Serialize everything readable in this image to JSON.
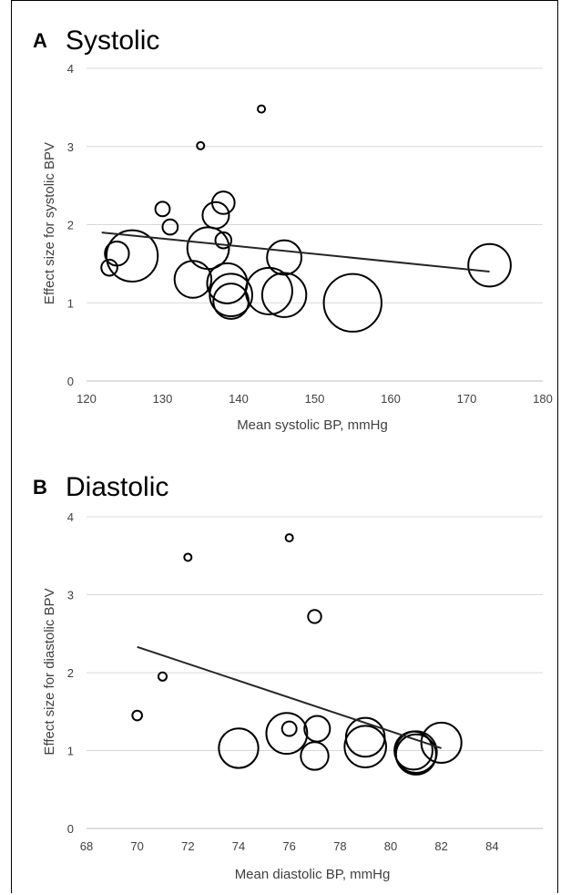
{
  "colors": {
    "bubble_stroke": "#000000",
    "trend_line": "#262626",
    "gridline": "#d9d9d9",
    "axis_text": "#404040"
  },
  "chart_data": [
    {
      "type": "scatter",
      "panel_letter": "A",
      "title": "Systolic",
      "xlabel": "Mean systolic BP, mmHg",
      "ylabel": "Effect size for systolic BPV",
      "xlim": [
        120,
        180
      ],
      "ylim": [
        0,
        4
      ],
      "xticks": [
        120,
        130,
        140,
        150,
        160,
        170,
        180
      ],
      "yticks": [
        0,
        1,
        2,
        3,
        4
      ],
      "grid": "horizontal",
      "bubble_radius_unit": "relative weight (0-1)",
      "points": [
        {
          "x": 143,
          "y": 3.48,
          "r": 0.09
        },
        {
          "x": 135,
          "y": 3.01,
          "r": 0.07
        },
        {
          "x": 130,
          "y": 2.2,
          "r": 0.18
        },
        {
          "x": 131,
          "y": 1.97,
          "r": 0.19
        },
        {
          "x": 138,
          "y": 2.28,
          "r": 0.28
        },
        {
          "x": 137,
          "y": 2.12,
          "r": 0.33
        },
        {
          "x": 138,
          "y": 1.8,
          "r": 0.2
        },
        {
          "x": 126,
          "y": 1.6,
          "r": 0.64
        },
        {
          "x": 124,
          "y": 1.63,
          "r": 0.3
        },
        {
          "x": 123,
          "y": 1.45,
          "r": 0.2
        },
        {
          "x": 136,
          "y": 1.7,
          "r": 0.52
        },
        {
          "x": 134,
          "y": 1.3,
          "r": 0.46
        },
        {
          "x": 146,
          "y": 1.58,
          "r": 0.43
        },
        {
          "x": 138.5,
          "y": 1.25,
          "r": 0.5
        },
        {
          "x": 139,
          "y": 1.1,
          "r": 0.53
        },
        {
          "x": 139,
          "y": 1.02,
          "r": 0.44
        },
        {
          "x": 144,
          "y": 1.15,
          "r": 0.58
        },
        {
          "x": 146,
          "y": 1.1,
          "r": 0.55
        },
        {
          "x": 155,
          "y": 1.0,
          "r": 0.72
        },
        {
          "x": 173,
          "y": 1.48,
          "r": 0.53
        }
      ],
      "trendline": {
        "x": [
          122,
          173
        ],
        "y": [
          1.9,
          1.4
        ]
      }
    },
    {
      "type": "scatter",
      "panel_letter": "B",
      "title": "Diastolic",
      "xlabel": "Mean diastolic BP, mmHg",
      "ylabel": "Effect size for diastolic BPV",
      "xlim": [
        68,
        86
      ],
      "ylim": [
        0,
        4
      ],
      "xticks": [
        68,
        70,
        72,
        74,
        76,
        78,
        80,
        82,
        84
      ],
      "yticks": [
        0,
        1,
        2,
        3,
        4
      ],
      "grid": "horizontal",
      "bubble_radius_unit": "relative weight (0-1)",
      "points": [
        {
          "x": 76,
          "y": 3.73,
          "r": 0.08
        },
        {
          "x": 72,
          "y": 3.48,
          "r": 0.07
        },
        {
          "x": 77,
          "y": 2.72,
          "r": 0.19
        },
        {
          "x": 71,
          "y": 1.95,
          "r": 0.12
        },
        {
          "x": 70,
          "y": 1.45,
          "r": 0.14
        },
        {
          "x": 74,
          "y": 1.03,
          "r": 0.57
        },
        {
          "x": 75.9,
          "y": 1.22,
          "r": 0.59
        },
        {
          "x": 76,
          "y": 1.28,
          "r": 0.21
        },
        {
          "x": 77.1,
          "y": 1.28,
          "r": 0.37
        },
        {
          "x": 77,
          "y": 0.93,
          "r": 0.4
        },
        {
          "x": 79,
          "y": 1.17,
          "r": 0.56
        },
        {
          "x": 79,
          "y": 1.05,
          "r": 0.6
        },
        {
          "x": 80.9,
          "y": 1.0,
          "r": 0.55
        },
        {
          "x": 81,
          "y": 0.98,
          "r": 0.6
        },
        {
          "x": 81,
          "y": 0.95,
          "r": 0.58
        },
        {
          "x": 82,
          "y": 1.1,
          "r": 0.58
        }
      ],
      "trendline": {
        "x": [
          70,
          82
        ],
        "y": [
          2.33,
          1.03
        ]
      }
    }
  ]
}
